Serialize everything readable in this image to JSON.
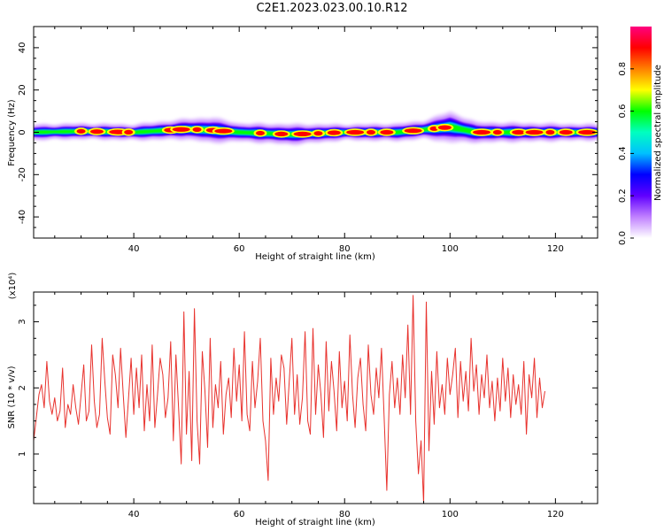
{
  "title": "C2E1.2023.023.00.10.R12",
  "chart_data": [
    {
      "type": "heatmap",
      "xlabel": "Height of straight line (km)",
      "ylabel": "Frequency (Hz)",
      "xlim": [
        21,
        128
      ],
      "ylim": [
        -50,
        50
      ],
      "xticks": [
        40,
        60,
        80,
        100,
        120
      ],
      "yticks": [
        -40,
        -20,
        0,
        20,
        40
      ],
      "colorbar": {
        "label": "Normalized spectral amplitude",
        "range": [
          0,
          1
        ],
        "ticks": [
          "0.0",
          "0.2",
          "0.4",
          "0.6",
          "0.8"
        ],
        "colormap": [
          "#ffffff",
          "#c080ff",
          "#6000ff",
          "#0000ff",
          "#00c0ff",
          "#00ffc0",
          "#00ff00",
          "#ffff00",
          "#ff8000",
          "#ff0000",
          "#ff0080"
        ]
      },
      "description_band": {
        "center_hz": 0,
        "centerline": [
          [
            21,
            0
          ],
          [
            30,
            0.5
          ],
          [
            40,
            0
          ],
          [
            50,
            1.5
          ],
          [
            55,
            1
          ],
          [
            60,
            0
          ],
          [
            70,
            -1
          ],
          [
            80,
            0
          ],
          [
            90,
            0
          ],
          [
            100,
            2.5
          ],
          [
            105,
            0
          ],
          [
            115,
            0
          ],
          [
            128,
            0
          ]
        ],
        "halfwidth": [
          [
            21,
            3
          ],
          [
            40,
            3
          ],
          [
            50,
            4
          ],
          [
            55,
            5
          ],
          [
            60,
            3.5
          ],
          [
            70,
            4
          ],
          [
            80,
            3
          ],
          [
            95,
            3.5
          ],
          [
            100,
            6
          ],
          [
            105,
            4
          ],
          [
            128,
            3
          ]
        ]
      },
      "hotspots_km": [
        30,
        33,
        37,
        39,
        47,
        49,
        52,
        55,
        57,
        64,
        68,
        72,
        75,
        78,
        82,
        85,
        88,
        93,
        97,
        99,
        106,
        109,
        113,
        116,
        119,
        122,
        126
      ]
    },
    {
      "type": "line",
      "xlabel": "Height of straight line (km)",
      "ylabel": "SNR (10 * v/v)",
      "yscale_note": "(x10⁴)",
      "xlim": [
        21,
        128
      ],
      "ylim": [
        0.25,
        3.45
      ],
      "xticks": [
        40,
        60,
        80,
        100,
        120
      ],
      "yticks": [
        1,
        2,
        3
      ],
      "series": [
        {
          "color": "#e8322d",
          "x_start": 21,
          "x_step": 0.5,
          "values": [
            1.2,
            1.55,
            1.9,
            2.05,
            1.7,
            2.4,
            1.8,
            1.6,
            1.85,
            1.5,
            1.65,
            2.3,
            1.4,
            1.75,
            1.6,
            2.05,
            1.7,
            1.45,
            1.9,
            2.35,
            1.5,
            1.65,
            2.65,
            1.8,
            1.4,
            1.6,
            2.75,
            2.1,
            1.55,
            1.3,
            2.5,
            2.2,
            1.7,
            2.6,
            1.9,
            1.25,
            1.85,
            2.45,
            1.6,
            2.3,
            1.7,
            2.5,
            1.35,
            2.05,
            1.5,
            2.65,
            1.4,
            1.9,
            2.45,
            2.2,
            1.55,
            1.85,
            2.7,
            1.2,
            2.5,
            1.7,
            0.85,
            3.15,
            1.3,
            2.25,
            0.9,
            3.2,
            1.5,
            0.85,
            2.55,
            1.95,
            1.1,
            2.75,
            1.4,
            2.05,
            1.7,
            2.4,
            1.3,
            1.9,
            2.15,
            1.55,
            2.6,
            1.8,
            2.35,
            1.5,
            2.85,
            1.6,
            1.35,
            2.4,
            1.7,
            2.1,
            2.75,
            1.5,
            1.2,
            0.6,
            2.45,
            1.6,
            2.15,
            1.8,
            2.5,
            2.3,
            1.45,
            2.1,
            2.75,
            1.6,
            2.2,
            1.45,
            1.85,
            2.85,
            1.5,
            1.3,
            2.9,
            1.6,
            2.35,
            1.9,
            1.25,
            2.7,
            1.65,
            2.4,
            1.95,
            1.35,
            2.55,
            1.7,
            2.1,
            1.5,
            2.8,
            1.9,
            1.4,
            2.15,
            2.45,
            1.75,
            1.35,
            2.65,
            1.9,
            1.6,
            2.3,
            1.85,
            2.6,
            1.55,
            0.45,
            1.9,
            2.4,
            1.7,
            2.15,
            1.6,
            2.5,
            1.85,
            2.95,
            1.6,
            3.4,
            1.5,
            0.7,
            1.2,
            0.25,
            3.3,
            1.05,
            2.25,
            1.45,
            2.55,
            1.7,
            2.05,
            1.6,
            2.45,
            1.9,
            2.2,
            2.6,
            1.55,
            2.4,
            1.8,
            2.25,
            1.65,
            2.75,
            1.95,
            2.35,
            1.6,
            2.2,
            1.85,
            2.5,
            1.7,
            2.1,
            1.5,
            2.15,
            1.65,
            2.45,
            1.8,
            2.3,
            1.55,
            2.2,
            1.75,
            2.05,
            1.6,
            2.4,
            1.3,
            2.2,
            1.85,
            2.45,
            1.55,
            2.15,
            1.7,
            1.95
          ]
        }
      ]
    }
  ]
}
